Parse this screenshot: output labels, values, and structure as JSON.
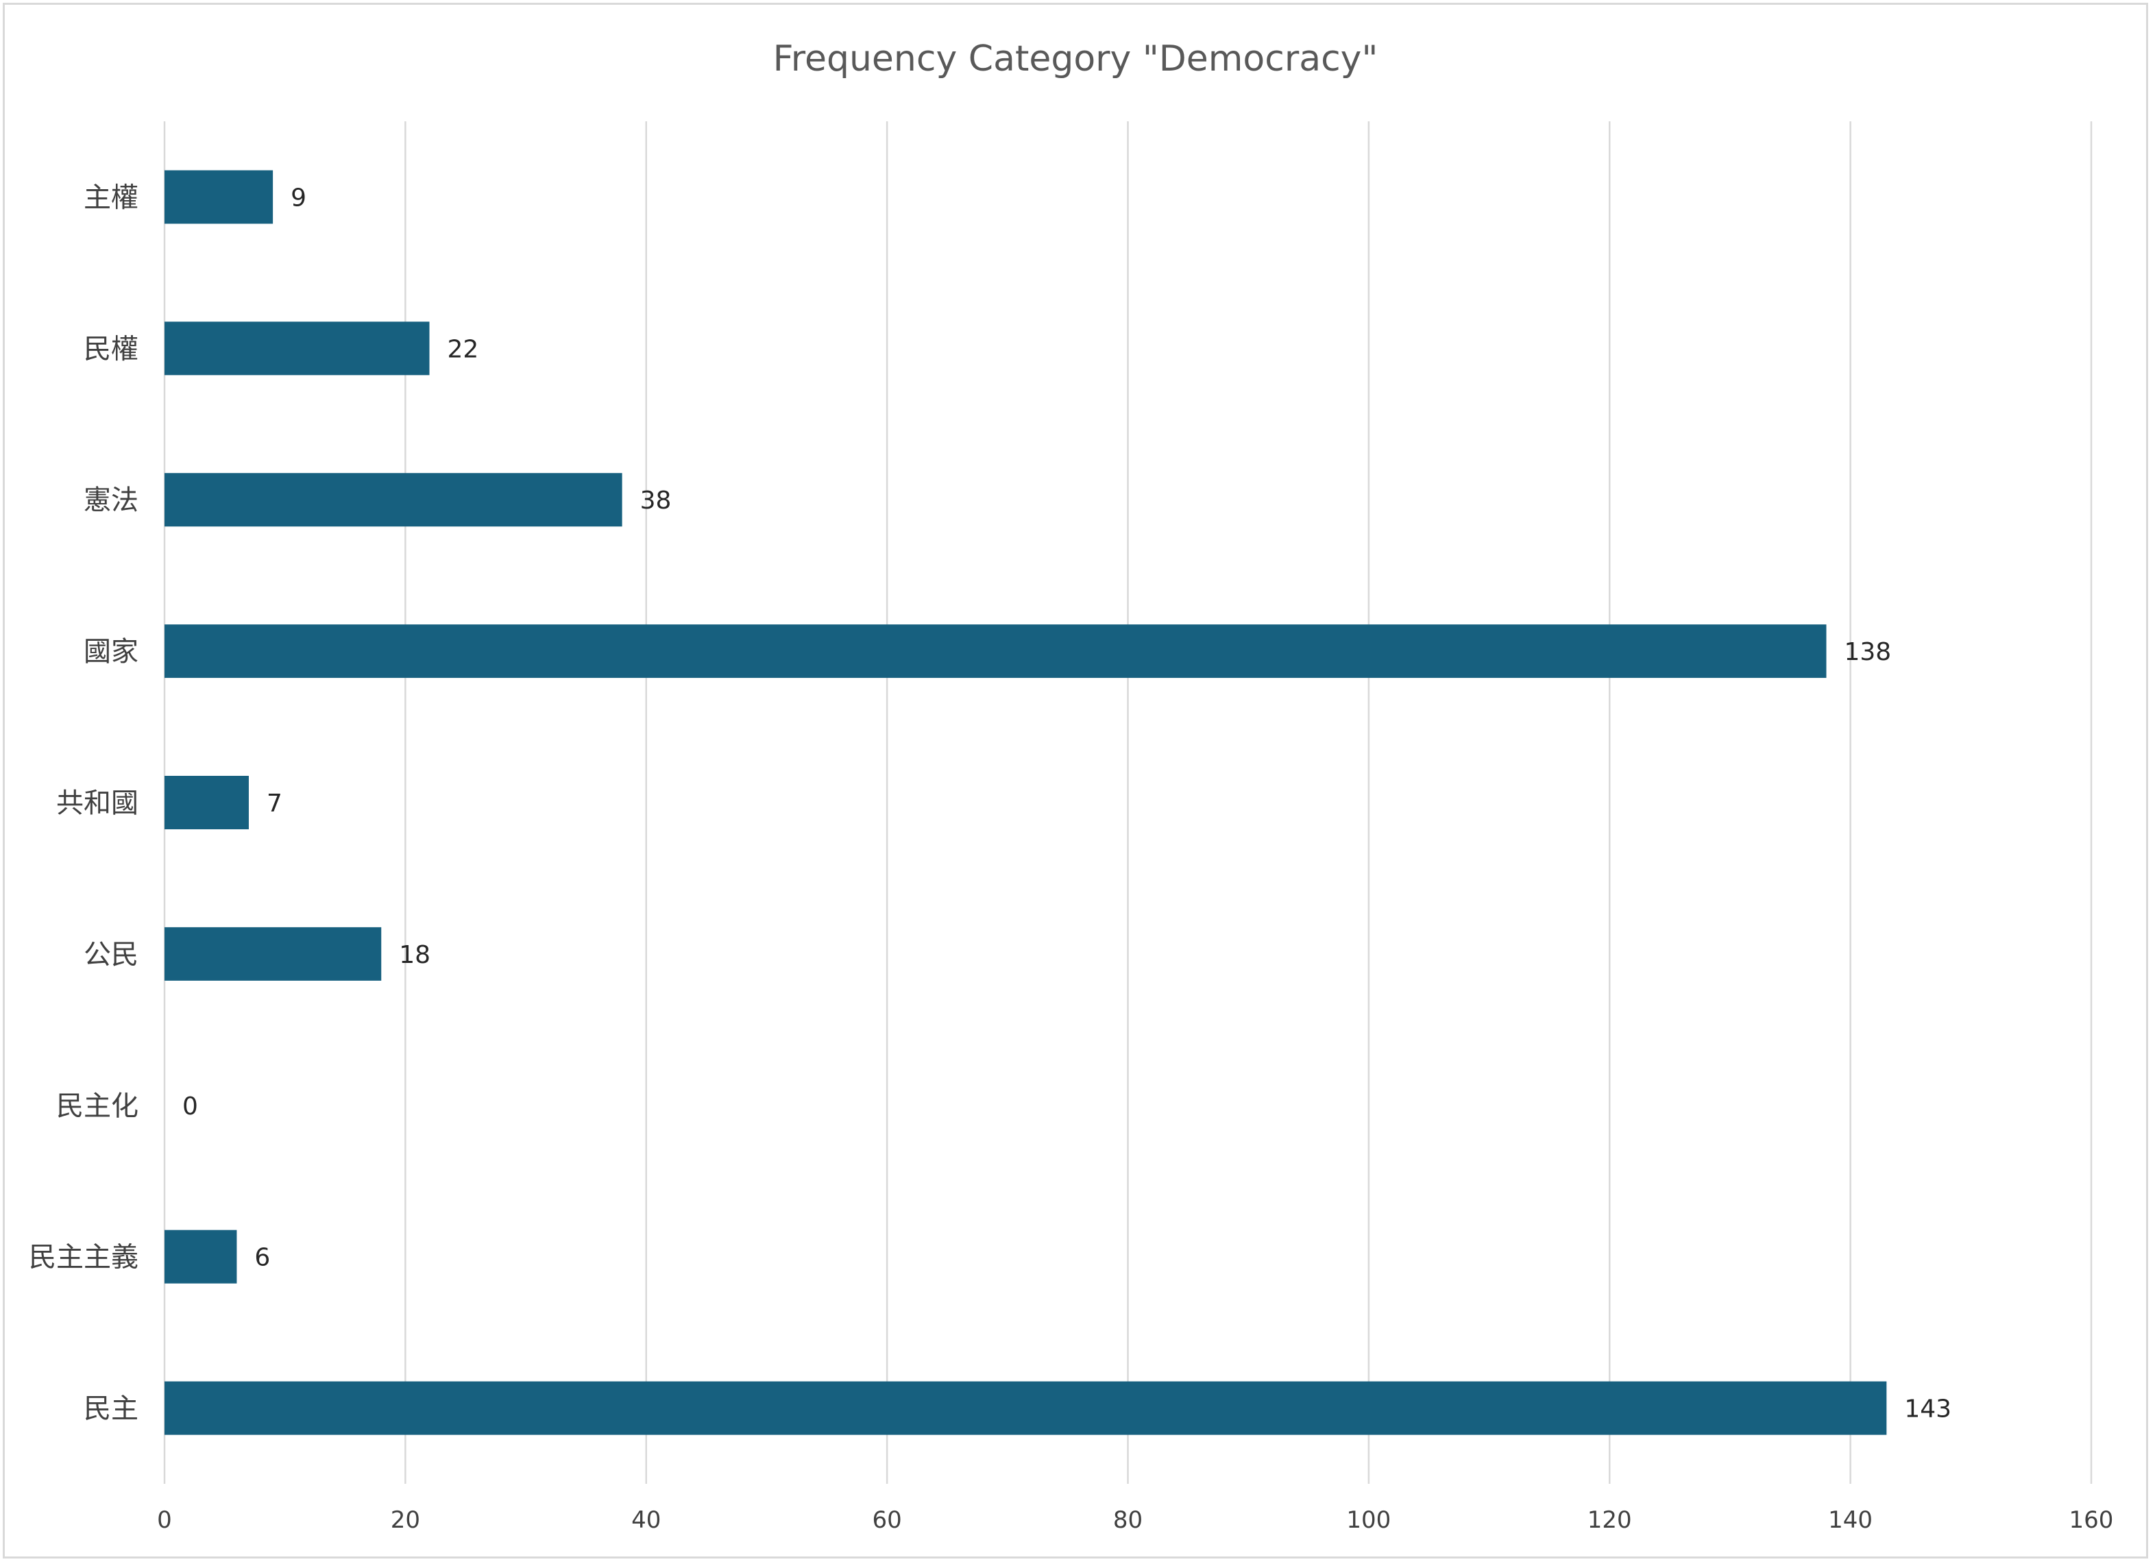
{
  "chart_data": {
    "type": "bar",
    "orientation": "horizontal",
    "title": "Frequency Category \"Democracy\"",
    "xlabel": "",
    "ylabel": "",
    "categories": [
      "主權",
      "民權",
      "憲法",
      "國家",
      "共和國",
      "公民",
      "民主化",
      "民主主義",
      "民主"
    ],
    "values": [
      9,
      22,
      38,
      138,
      7,
      18,
      0,
      6,
      143
    ],
    "xlim": [
      0,
      160
    ],
    "ticks": [
      0,
      20,
      40,
      60,
      80,
      100,
      120,
      140,
      160
    ],
    "grid": "vertical",
    "legend": "none",
    "data_labels": true,
    "bar_color": "#17607F"
  }
}
